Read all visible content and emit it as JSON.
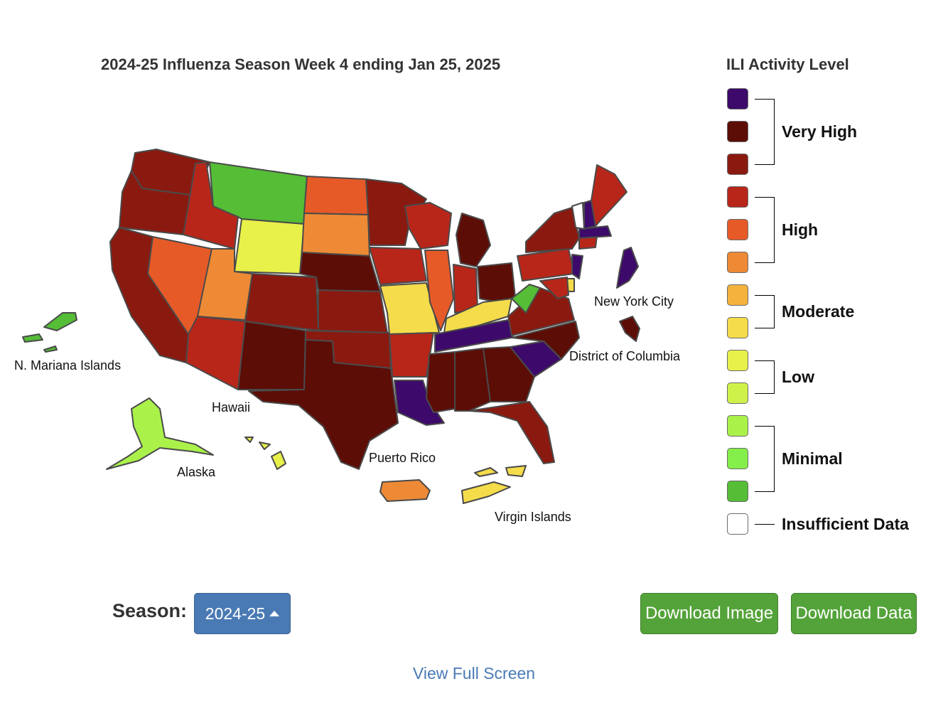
{
  "title": "2024-25 Influenza Season Week 4 ending Jan 25, 2025",
  "legend": {
    "title": "ILI Activity Level",
    "swatches": [
      {
        "color": "#3d0a6b"
      },
      {
        "color": "#5c0d06"
      },
      {
        "color": "#8a1a10"
      },
      {
        "color": "#b8261a"
      },
      {
        "color": "#e65a28"
      },
      {
        "color": "#ee8a35"
      },
      {
        "color": "#f3b33c"
      },
      {
        "color": "#f5dc4a"
      },
      {
        "color": "#e8f04a"
      },
      {
        "color": "#cff24a"
      },
      {
        "color": "#aaf24a"
      },
      {
        "color": "#84ee4a"
      },
      {
        "color": "#55bd36"
      },
      {
        "color": "#ffffff"
      }
    ],
    "levels": [
      "Very High",
      "High",
      "Moderate",
      "Low",
      "Minimal",
      "Insufficient Data"
    ]
  },
  "colors": {
    "purple": "#3d0a6b",
    "darkest": "#5c0d06",
    "dark": "#8a1a10",
    "red": "#b8261a",
    "orangered": "#e65a28",
    "orange": "#ee8a35",
    "ymod": "#f5dc4a",
    "yellow": "#e8f04a",
    "lime": "#aaf24a",
    "green": "#55bd36",
    "white": "#ffffff"
  },
  "map_labels": {
    "mariana": "N. Mariana Islands",
    "hawaii": "Hawaii",
    "alaska": "Alaska",
    "puerto_rico": "Puerto Rico",
    "virgin_islands": "Virgin Islands",
    "nyc": "New York City",
    "dc": "District of Columbia"
  },
  "controls": {
    "season_label": "Season:",
    "season_value": "2024-25",
    "download_image": "Download Image",
    "download_data": "Download Data",
    "fullscreen": "View Full Screen"
  }
}
